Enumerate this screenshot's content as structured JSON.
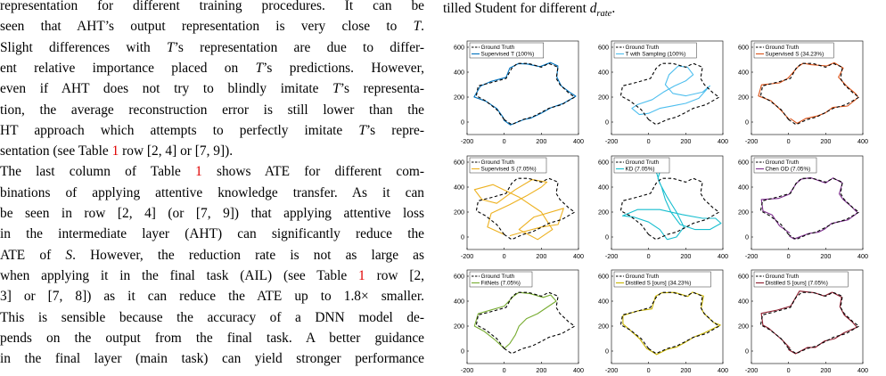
{
  "left_text": {
    "lines": [
      {
        "parts": [
          {
            "t": "representation for different training procedures.  It can be"
          }
        ]
      },
      {
        "parts": [
          {
            "t": "seen that AHT’s output representation is very close to "
          },
          {
            "t": "T",
            "i": true
          },
          {
            "t": "."
          }
        ]
      },
      {
        "parts": [
          {
            "t": "Slight differences with "
          },
          {
            "t": "T",
            "i": true
          },
          {
            "t": "’s representation are due to differ-"
          }
        ]
      },
      {
        "parts": [
          {
            "t": "ent relative importance placed on "
          },
          {
            "t": "T",
            "i": true
          },
          {
            "t": "’s predictions. However,"
          }
        ]
      },
      {
        "parts": [
          {
            "t": "even if AHT does not try to blindly imitate "
          },
          {
            "t": "T",
            "i": true
          },
          {
            "t": "’s representa-"
          }
        ]
      },
      {
        "parts": [
          {
            "t": "tion, the average reconstruction error is still lower than the"
          }
        ]
      },
      {
        "parts": [
          {
            "t": "HT approach which attempts to perfectly imitate "
          },
          {
            "t": "T",
            "i": true
          },
          {
            "t": "’s repre-"
          }
        ]
      },
      {
        "parts": [
          {
            "t": "sentation (see Table "
          },
          {
            "t": "1",
            "r": true
          },
          {
            "t": " row [2, 4] or [7, 9])."
          }
        ],
        "last": true
      },
      {
        "parts": [
          {
            "t": "    The last column of Table "
          },
          {
            "t": "1",
            "r": true
          },
          {
            "t": " shows ATE for different com-"
          }
        ]
      },
      {
        "parts": [
          {
            "t": "binations of applying attentive knowledge transfer. As it can"
          }
        ]
      },
      {
        "parts": [
          {
            "t": "be seen in row [2, 4] (or [7, 9]) that applying attentive loss"
          }
        ]
      },
      {
        "parts": [
          {
            "t": "in the intermediate layer (AHT) can significantly reduce the"
          }
        ]
      },
      {
        "parts": [
          {
            "t": "ATE of "
          },
          {
            "t": "S",
            "i": true
          },
          {
            "t": ".  However, the reduction rate is not as large as"
          }
        ]
      },
      {
        "parts": [
          {
            "t": "when applying it in the final task (AIL) (see Table "
          },
          {
            "t": "1",
            "r": true
          },
          {
            "t": " row [2,"
          }
        ]
      },
      {
        "parts": [
          {
            "t": "3] or [7, 8]) as it can reduce the ATE up to 1.8× smaller."
          }
        ]
      },
      {
        "parts": [
          {
            "t": "This is sensible because the accuracy of a DNN model de-"
          }
        ]
      },
      {
        "parts": [
          {
            "t": "pends on the output from the final task.  A better guidance"
          }
        ]
      },
      {
        "parts": [
          {
            "t": "in the final layer (main task) can yield stronger performance"
          }
        ]
      }
    ]
  },
  "caption": {
    "before": "tilled Student for different ",
    "math": "d",
    "sub": "rate",
    "after": "."
  },
  "legend_gt": "Ground Truth",
  "axes": {
    "x_ticks": [
      "-200",
      "0",
      "200",
      "400"
    ],
    "y_ticks": [
      "0",
      "200",
      "400",
      "600"
    ]
  },
  "colors": {
    "ground_truth": "#000000"
  },
  "plots": [
    {
      "label": "Supervised T (100%)",
      "color": "#0072bd",
      "kind": "close"
    },
    {
      "label": "T with Sampling (100%)",
      "color": "#4dbeee",
      "kind": "sampling"
    },
    {
      "label": "Supervised S (34.23%)",
      "color": "#d95319",
      "kind": "close"
    },
    {
      "label": "Supervised S (7.05%)",
      "color": "#edb120",
      "kind": "messy"
    },
    {
      "label": "KD (7.05%)",
      "color": "#17becf",
      "kind": "kd"
    },
    {
      "label": "Chen OD (7.05%)",
      "color": "#7e2f8e",
      "kind": "close"
    },
    {
      "label": "FitNets (7.05%)",
      "color": "#77ac30",
      "kind": "fitnets"
    },
    {
      "label": "Distilled S [ours] (34.23%)",
      "color": "#c8b400",
      "kind": "close"
    },
    {
      "label": "Distilled S [ours] (7.05%)",
      "color": "#8b1a2b",
      "kind": "close"
    }
  ]
}
